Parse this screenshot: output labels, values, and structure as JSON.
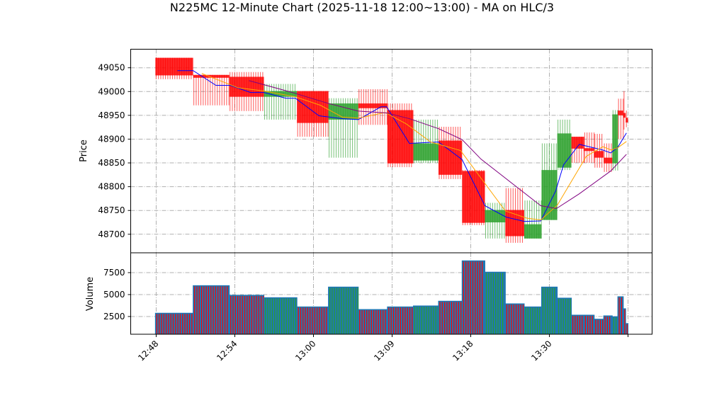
{
  "chart_data": {
    "type": "candlestick",
    "title": "N225MC 12-Minute Chart (2025-11-18 12:00~13:00) - MA on HLC/3",
    "x_ticks": [
      "12:48",
      "12:54",
      "13:00",
      "13:09",
      "13:18",
      "13:30",
      ""
    ],
    "xlim": [
      -0.324,
      6.306
    ],
    "price_panel": {
      "ylabel": "Price",
      "ylim": [
        48661,
        49089
      ],
      "yticks": [
        48700,
        48750,
        48800,
        48850,
        48900,
        48950,
        49000,
        49050
      ],
      "grid": true
    },
    "volume_panel": {
      "ylabel": "Volume",
      "ylim": [
        480,
        9760
      ],
      "yticks": [
        2500,
        5000,
        7500
      ],
      "grid": true
    },
    "colors": {
      "up": "#2ca02c",
      "down": "#ff0000",
      "volume": "#1f77b4",
      "ma_short": "#0000ff",
      "ma_mid": "#ffa500",
      "ma_long": "#800080",
      "grid": "#b0b0b0"
    },
    "bars": [
      {
        "x0": -0.01,
        "x1": 0.47,
        "open": 49071,
        "high": 49071,
        "low": 49026,
        "close": 49034,
        "volume": 2880
      },
      {
        "x0": 0.47,
        "x1": 0.93,
        "open": 49035,
        "high": 49035,
        "low": 48971,
        "close": 49029,
        "volume": 6020
      },
      {
        "x0": 0.93,
        "x1": 1.37,
        "open": 49031,
        "high": 49041,
        "low": 48959,
        "close": 48989,
        "volume": 4920
      },
      {
        "x0": 1.37,
        "x1": 1.79,
        "open": 48989,
        "high": 49016,
        "low": 48941,
        "close": 49001,
        "volume": 4650
      },
      {
        "x0": 1.79,
        "x1": 2.19,
        "open": 49001,
        "high": 49001,
        "low": 48905,
        "close": 48934,
        "volume": 3600
      },
      {
        "x0": 2.19,
        "x1": 2.57,
        "open": 48941,
        "high": 48986,
        "low": 48861,
        "close": 48975,
        "volume": 5860
      },
      {
        "x0": 2.57,
        "x1": 2.94,
        "open": 48975,
        "high": 49005,
        "low": 48930,
        "close": 48965,
        "volume": 3300
      },
      {
        "x0": 2.94,
        "x1": 3.27,
        "open": 48961,
        "high": 48975,
        "low": 48841,
        "close": 48849,
        "volume": 3600
      },
      {
        "x0": 3.27,
        "x1": 3.59,
        "open": 48855,
        "high": 48941,
        "low": 48850,
        "close": 48891,
        "volume": 3710
      },
      {
        "x0": 3.59,
        "x1": 3.89,
        "open": 48897,
        "high": 48926,
        "low": 48816,
        "close": 48825,
        "volume": 4250
      },
      {
        "x0": 3.89,
        "x1": 4.18,
        "open": 48833,
        "high": 48835,
        "low": 48719,
        "close": 48724,
        "volume": 8850
      },
      {
        "x0": 4.18,
        "x1": 4.44,
        "open": 48725,
        "high": 48766,
        "low": 48691,
        "close": 48751,
        "volume": 7560
      },
      {
        "x0": 4.44,
        "x1": 4.68,
        "open": 48751,
        "high": 48797,
        "low": 48682,
        "close": 48696,
        "volume": 3950
      },
      {
        "x0": 4.68,
        "x1": 4.9,
        "open": 48691,
        "high": 48771,
        "low": 48691,
        "close": 48721,
        "volume": 3600
      },
      {
        "x0": 4.9,
        "x1": 5.1,
        "open": 48730,
        "high": 48891,
        "low": 48730,
        "close": 48835,
        "volume": 5860
      },
      {
        "x0": 5.1,
        "x1": 5.28,
        "open": 48840,
        "high": 48941,
        "low": 48835,
        "close": 48912,
        "volume": 4600
      },
      {
        "x0": 5.28,
        "x1": 5.44,
        "open": 48905,
        "high": 48905,
        "low": 48850,
        "close": 48880,
        "volume": 2660
      },
      {
        "x0": 5.44,
        "x1": 5.57,
        "open": 48881,
        "high": 48914,
        "low": 48850,
        "close": 48875,
        "volume": 2660
      },
      {
        "x0": 5.57,
        "x1": 5.69,
        "open": 48875,
        "high": 48911,
        "low": 48840,
        "close": 48861,
        "volume": 2200
      },
      {
        "x0": 5.69,
        "x1": 5.8,
        "open": 48861,
        "high": 48891,
        "low": 48831,
        "close": 48849,
        "volume": 2580
      },
      {
        "x0": 5.8,
        "x1": 5.87,
        "open": 48849,
        "high": 48961,
        "low": 48834,
        "close": 48952,
        "volume": 2480
      },
      {
        "x0": 5.87,
        "x1": 5.94,
        "open": 48960,
        "high": 48985,
        "low": 48900,
        "close": 48950,
        "volume": 4760
      },
      {
        "x0": 5.94,
        "x1": 5.97,
        "open": 48955,
        "high": 49001,
        "low": 48920,
        "close": 48945,
        "volume": 3390
      },
      {
        "x0": 5.97,
        "x1": 6.0,
        "open": 48945,
        "high": 48960,
        "low": 48925,
        "close": 48935,
        "volume": 1700
      }
    ],
    "series": [
      {
        "name": "MA short",
        "color_key": "ma_short",
        "points": [
          [
            0.27,
            49044
          ],
          [
            0.47,
            49044
          ],
          [
            0.76,
            49013
          ],
          [
            0.94,
            49013
          ],
          [
            1.2,
            48998
          ],
          [
            1.37,
            48998
          ],
          [
            1.65,
            48986
          ],
          [
            1.77,
            48986
          ],
          [
            2.07,
            48949
          ],
          [
            2.37,
            48943
          ],
          [
            2.57,
            48941
          ],
          [
            2.86,
            48968
          ],
          [
            2.93,
            48968
          ],
          [
            3.22,
            48891
          ],
          [
            3.59,
            48894
          ],
          [
            3.89,
            48857
          ],
          [
            4.18,
            48760
          ],
          [
            4.45,
            48736
          ],
          [
            4.68,
            48727
          ],
          [
            4.89,
            48728
          ],
          [
            5.08,
            48791
          ],
          [
            5.18,
            48846
          ],
          [
            5.38,
            48889
          ],
          [
            5.68,
            48877
          ],
          [
            5.78,
            48871
          ],
          [
            5.87,
            48883
          ],
          [
            5.98,
            48913
          ]
        ]
      },
      {
        "name": "MA mid",
        "color_key": "ma_mid",
        "points": [
          [
            0.58,
            49038
          ],
          [
            1.04,
            49008
          ],
          [
            1.38,
            49001
          ],
          [
            1.77,
            48989
          ],
          [
            2.09,
            48971
          ],
          [
            2.37,
            48946
          ],
          [
            2.57,
            48944
          ],
          [
            2.91,
            48956
          ],
          [
            3.18,
            48932
          ],
          [
            3.49,
            48894
          ],
          [
            3.87,
            48876
          ],
          [
            4.44,
            48749
          ],
          [
            4.71,
            48734
          ],
          [
            4.89,
            48730
          ],
          [
            5.1,
            48761
          ],
          [
            5.47,
            48864
          ],
          [
            5.68,
            48884
          ],
          [
            5.79,
            48877
          ],
          [
            5.87,
            48882
          ],
          [
            5.98,
            48895
          ]
        ]
      },
      {
        "name": "MA long",
        "color_key": "ma_long",
        "points": [
          [
            1.18,
            49023
          ],
          [
            1.71,
            48999
          ],
          [
            2.19,
            48975
          ],
          [
            2.57,
            48959
          ],
          [
            2.93,
            48955
          ],
          [
            3.22,
            48943
          ],
          [
            3.59,
            48922
          ],
          [
            3.89,
            48899
          ],
          [
            4.13,
            48858
          ],
          [
            4.44,
            48818
          ],
          [
            4.89,
            48760
          ],
          [
            5.09,
            48754
          ],
          [
            5.38,
            48785
          ],
          [
            5.78,
            48833
          ],
          [
            5.98,
            48868
          ]
        ]
      }
    ]
  }
}
